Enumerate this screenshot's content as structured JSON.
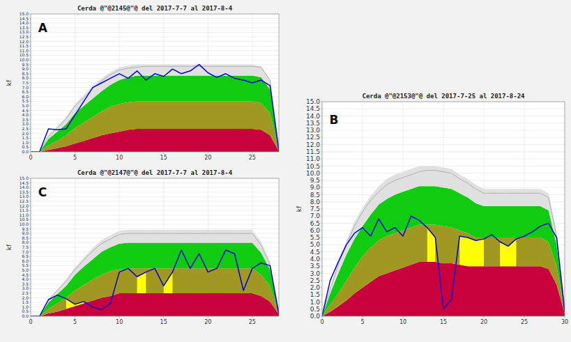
{
  "chart_data": [
    {
      "type": "area",
      "title": "Cerda @\"@2145@\"@ del 2017-7-7 al 2017-8-4",
      "annotations": [
        "A"
      ],
      "y_label": "kf",
      "x": [
        0,
        1,
        2,
        3,
        4,
        5,
        6,
        7,
        8,
        9,
        10,
        11,
        12,
        13,
        14,
        15,
        16,
        17,
        18,
        19,
        20,
        21,
        22,
        23,
        24,
        25,
        26,
        27,
        28
      ],
      "xlim": [
        0,
        28
      ],
      "xticks": [
        0,
        5,
        10,
        15,
        20,
        25
      ],
      "ylim": [
        0,
        15.0
      ],
      "yticks": [
        {
          "value": 0,
          "label": "0.0"
        },
        0.5,
        {
          "value": 1,
          "label": "1.0"
        },
        1.5,
        {
          "value": 2,
          "label": "2.0"
        },
        2.5,
        {
          "value": 3,
          "label": "3.0"
        },
        3.5,
        {
          "value": 4,
          "label": "4.0"
        },
        4.5,
        {
          "value": 5,
          "label": "5.0"
        },
        5.5,
        {
          "value": 6,
          "label": "6.0"
        },
        6.5,
        {
          "value": 7,
          "label": "7.0"
        },
        7.5,
        {
          "value": 8,
          "label": "8.0"
        },
        8.5,
        {
          "value": 9,
          "label": "9.0"
        },
        9.5,
        {
          "value": 10,
          "label": "10.0"
        },
        10.5,
        {
          "value": 11,
          "label": "11.0"
        },
        11.5,
        {
          "value": 12,
          "label": "12.0"
        },
        12.5,
        {
          "value": 13,
          "label": "13.0"
        },
        13.5,
        {
          "value": 14,
          "label": "14.0"
        },
        14.5,
        {
          "value": 15,
          "label": "15.0"
        }
      ],
      "grid": true,
      "series": [
        {
          "type": "area",
          "color": "#c8003c",
          "values": [
            0.0,
            0.0,
            0.2,
            0.4,
            0.6,
            0.9,
            1.2,
            1.5,
            1.8,
            2.0,
            2.2,
            2.4,
            2.5,
            2.5,
            2.5,
            2.5,
            2.5,
            2.5,
            2.5,
            2.5,
            2.5,
            2.5,
            2.5,
            2.5,
            2.5,
            2.5,
            2.4,
            1.8,
            0.1
          ]
        },
        {
          "type": "area",
          "color": "#a09820",
          "values": [
            0.0,
            0.0,
            0.7,
            1.2,
            1.8,
            2.6,
            3.2,
            3.8,
            4.4,
            4.9,
            5.2,
            5.4,
            5.5,
            5.5,
            5.5,
            5.5,
            5.5,
            5.5,
            5.5,
            5.5,
            5.5,
            5.5,
            5.5,
            5.5,
            5.5,
            5.5,
            5.3,
            4.2,
            0.2
          ]
        },
        {
          "type": "area",
          "color": "#10cc10",
          "values": [
            0.0,
            0.0,
            1.4,
            2.2,
            3.0,
            4.2,
            5.0,
            5.8,
            6.6,
            7.3,
            7.8,
            8.1,
            8.3,
            8.3,
            8.3,
            8.3,
            8.3,
            8.3,
            8.3,
            8.3,
            8.3,
            8.3,
            8.3,
            8.3,
            8.3,
            8.3,
            8.1,
            6.8,
            0.3
          ]
        },
        {
          "type": "area",
          "color": "#e0e0e0",
          "values": [
            0.0,
            0.0,
            1.8,
            2.8,
            3.8,
            5.2,
            6.2,
            7.2,
            8.0,
            8.7,
            9.2,
            9.4,
            9.5,
            9.5,
            9.5,
            9.5,
            9.5,
            9.5,
            9.5,
            9.5,
            9.5,
            9.5,
            9.5,
            9.5,
            9.5,
            9.5,
            9.3,
            7.8,
            0.4
          ]
        },
        {
          "type": "highlight",
          "color": "#ffff00",
          "values": [
            0.0,
            0.0,
            2.5,
            2.4,
            2.5,
            4.0,
            5.5,
            7.0,
            7.5,
            8.0,
            8.5,
            8.0,
            8.8,
            7.8,
            8.5,
            8.2,
            9.0,
            8.5,
            8.8,
            9.5,
            8.6,
            8.1,
            8.5,
            8.0,
            7.8,
            7.5,
            7.8,
            7.2,
            0.1
          ]
        },
        {
          "type": "line",
          "color": "#b0b0b0",
          "values": [
            0.0,
            0.0,
            1.7,
            2.6,
            3.6,
            5.0,
            5.9,
            6.9,
            7.7,
            8.4,
            8.9,
            9.1,
            9.2,
            9.3,
            9.3,
            9.3,
            9.3,
            9.3,
            9.3,
            9.3,
            9.3,
            9.3,
            9.3,
            9.3,
            9.3,
            9.3,
            9.2,
            7.8,
            0.3
          ]
        },
        {
          "type": "line",
          "color": "#0000dd",
          "values": [
            0.0,
            0.0,
            2.5,
            2.4,
            2.5,
            4.0,
            5.5,
            7.0,
            7.5,
            8.0,
            8.5,
            8.0,
            8.8,
            7.8,
            8.5,
            8.2,
            9.0,
            8.5,
            8.8,
            9.5,
            8.6,
            8.1,
            8.5,
            8.0,
            7.8,
            7.5,
            7.8,
            7.2,
            0.1
          ]
        }
      ]
    },
    {
      "type": "area",
      "title": "Cerda @\"@2153@\"@ del 2017-7-25 al 2017-8-24",
      "annotations": [
        "B"
      ],
      "y_label": "kf",
      "x": [
        0,
        1,
        2,
        3,
        4,
        5,
        6,
        7,
        8,
        9,
        10,
        11,
        12,
        13,
        14,
        15,
        16,
        17,
        18,
        19,
        20,
        21,
        22,
        23,
        24,
        25,
        26,
        27,
        28,
        29,
        30
      ],
      "xlim": [
        0,
        30
      ],
      "xticks": [
        0,
        5,
        10,
        15,
        20,
        25,
        30
      ],
      "ylim": [
        0,
        15.0
      ],
      "yticks": [
        {
          "value": 0,
          "label": "0.0"
        },
        0.5,
        {
          "value": 1,
          "label": "1.0"
        },
        1.5,
        {
          "value": 2,
          "label": "2.0"
        },
        2.5,
        {
          "value": 3,
          "label": "3.0"
        },
        3.5,
        {
          "value": 4,
          "label": "4.0"
        },
        4.5,
        {
          "value": 5,
          "label": "5.0"
        },
        5.5,
        {
          "value": 6,
          "label": "6.0"
        },
        6.5,
        {
          "value": 7,
          "label": "7.0"
        },
        7.5,
        {
          "value": 8,
          "label": "8.0"
        },
        8.5,
        {
          "value": 9,
          "label": "9.0"
        },
        9.5,
        {
          "value": 10,
          "label": "10.0"
        },
        10.5,
        {
          "value": 11,
          "label": "11.0"
        },
        11.5,
        {
          "value": 12,
          "label": "12.0"
        },
        12.5,
        {
          "value": 13,
          "label": "13.0"
        },
        13.5,
        {
          "value": 14,
          "label": "14.0"
        },
        14.5,
        {
          "value": 15,
          "label": "15.0"
        }
      ],
      "grid": true,
      "series": [
        {
          "type": "area",
          "color": "#c8003c",
          "values": [
            0.0,
            0.3,
            0.7,
            1.1,
            1.6,
            2.0,
            2.4,
            2.8,
            3.0,
            3.2,
            3.4,
            3.6,
            3.8,
            3.8,
            3.8,
            3.7,
            3.7,
            3.6,
            3.5,
            3.5,
            3.5,
            3.5,
            3.5,
            3.5,
            3.5,
            3.5,
            3.5,
            3.5,
            3.3,
            2.2,
            0.2
          ]
        },
        {
          "type": "area",
          "color": "#a09820",
          "values": [
            0.0,
            0.8,
            1.6,
            2.5,
            3.4,
            4.2,
            4.8,
            5.3,
            5.6,
            5.8,
            6.0,
            6.2,
            6.4,
            6.4,
            6.4,
            6.3,
            6.2,
            6.0,
            5.8,
            5.5,
            5.5,
            5.5,
            5.5,
            5.5,
            5.5,
            5.5,
            5.5,
            5.5,
            5.2,
            3.5,
            0.4
          ]
        },
        {
          "type": "area",
          "color": "#10cc10",
          "values": [
            0.0,
            1.6,
            3.0,
            4.3,
            5.4,
            6.3,
            7.1,
            7.8,
            8.2,
            8.5,
            8.7,
            8.9,
            9.1,
            9.1,
            9.1,
            9.0,
            8.9,
            8.6,
            8.3,
            7.9,
            7.7,
            7.7,
            7.7,
            7.7,
            7.7,
            7.7,
            7.7,
            7.7,
            7.4,
            5.0,
            0.5
          ]
        },
        {
          "type": "area",
          "color": "#e0e0e0",
          "values": [
            0.0,
            2.0,
            3.8,
            5.3,
            6.6,
            7.6,
            8.4,
            9.1,
            9.6,
            9.9,
            10.1,
            10.3,
            10.5,
            10.5,
            10.5,
            10.4,
            10.3,
            9.9,
            9.6,
            9.2,
            8.9,
            8.9,
            8.9,
            8.9,
            8.9,
            8.9,
            8.9,
            8.9,
            8.6,
            5.9,
            0.7
          ]
        },
        {
          "type": "highlight",
          "color": "#ffff00",
          "values": [
            0.0,
            2.5,
            3.8,
            5.0,
            5.8,
            6.2,
            5.6,
            6.8,
            5.9,
            6.2,
            5.6,
            7.0,
            6.7,
            6.2,
            5.5,
            0.5,
            1.2,
            5.6,
            5.5,
            5.3,
            5.4,
            5.7,
            5.2,
            4.9,
            5.4,
            5.6,
            5.9,
            6.3,
            6.5,
            5.5,
            0.3
          ]
        },
        {
          "type": "line",
          "color": "#b0b0b0",
          "values": [
            0.0,
            1.9,
            3.6,
            5.0,
            6.3,
            7.3,
            8.1,
            8.7,
            9.2,
            9.5,
            9.7,
            9.9,
            10.1,
            10.2,
            10.2,
            10.1,
            10.0,
            9.6,
            9.3,
            8.9,
            8.6,
            8.6,
            8.6,
            8.6,
            8.6,
            8.6,
            8.6,
            8.6,
            8.3,
            5.6,
            0.6
          ]
        },
        {
          "type": "line",
          "color": "#0000dd",
          "values": [
            0.0,
            2.5,
            3.8,
            5.0,
            5.8,
            6.2,
            5.6,
            6.8,
            5.9,
            6.2,
            5.6,
            7.0,
            6.7,
            6.2,
            5.5,
            0.5,
            1.2,
            5.6,
            5.5,
            5.3,
            5.4,
            5.7,
            5.2,
            4.9,
            5.4,
            5.6,
            5.9,
            6.3,
            6.5,
            5.5,
            0.3
          ]
        }
      ]
    },
    {
      "type": "area",
      "title": "Cerda @\"@2147@\"@ del 2017-7-7 al 2017-8-4",
      "annotations": [
        "C"
      ],
      "y_label": "kf",
      "x": [
        0,
        1,
        2,
        3,
        4,
        5,
        6,
        7,
        8,
        9,
        10,
        11,
        12,
        13,
        14,
        15,
        16,
        17,
        18,
        19,
        20,
        21,
        22,
        23,
        24,
        25,
        26,
        27,
        28
      ],
      "xlim": [
        0,
        28
      ],
      "xticks": [
        0,
        5,
        10,
        15,
        20,
        25
      ],
      "ylim": [
        0,
        15.0
      ],
      "yticks": [
        {
          "value": 0,
          "label": "0.0"
        },
        0.5,
        {
          "value": 1,
          "label": "1.0"
        },
        1.5,
        {
          "value": 2,
          "label": "2.0"
        },
        2.5,
        {
          "value": 3,
          "label": "3.0"
        },
        3.5,
        {
          "value": 4,
          "label": "4.0"
        },
        4.5,
        {
          "value": 5,
          "label": "5.0"
        },
        5.5,
        {
          "value": 6,
          "label": "6.0"
        },
        6.5,
        {
          "value": 7,
          "label": "7.0"
        },
        7.5,
        {
          "value": 8,
          "label": "8.0"
        },
        8.5,
        {
          "value": 9,
          "label": "9.0"
        },
        9.5,
        {
          "value": 10,
          "label": "10.0"
        },
        10.5,
        {
          "value": 11,
          "label": "11.0"
        },
        11.5,
        {
          "value": 12,
          "label": "12.0"
        },
        12.5,
        {
          "value": 13,
          "label": "13.0"
        },
        13.5,
        {
          "value": 14,
          "label": "14.0"
        },
        14.5,
        {
          "value": 15,
          "label": "15.0"
        }
      ],
      "grid": true,
      "series": [
        {
          "type": "area",
          "color": "#c8003c",
          "values": [
            0.0,
            0.0,
            0.3,
            0.5,
            0.8,
            1.1,
            1.4,
            1.7,
            2.0,
            2.2,
            2.5,
            2.5,
            2.5,
            2.5,
            2.5,
            2.5,
            2.5,
            2.5,
            2.5,
            2.5,
            2.5,
            2.5,
            2.5,
            2.5,
            2.5,
            2.5,
            2.2,
            1.6,
            0.2
          ]
        },
        {
          "type": "area",
          "color": "#a09820",
          "values": [
            0.0,
            0.0,
            0.8,
            1.4,
            2.0,
            2.8,
            3.4,
            4.0,
            4.5,
            4.9,
            5.1,
            5.2,
            5.2,
            5.2,
            5.2,
            5.2,
            5.2,
            5.2,
            5.2,
            5.2,
            5.2,
            5.2,
            5.2,
            5.2,
            5.2,
            5.2,
            4.5,
            3.3,
            0.4
          ]
        },
        {
          "type": "area",
          "color": "#10cc10",
          "values": [
            0.0,
            0.0,
            1.5,
            2.4,
            3.3,
            4.5,
            5.4,
            6.2,
            7.0,
            7.5,
            7.9,
            8.0,
            8.0,
            8.0,
            8.0,
            8.0,
            8.0,
            8.0,
            8.0,
            8.0,
            8.0,
            8.0,
            8.0,
            8.0,
            8.0,
            8.0,
            6.9,
            5.1,
            0.5
          ]
        },
        {
          "type": "area",
          "color": "#e0e0e0",
          "values": [
            0.0,
            0.0,
            1.9,
            2.9,
            4.0,
            5.3,
            6.4,
            7.4,
            8.3,
            8.8,
            9.3,
            9.4,
            9.4,
            9.4,
            9.4,
            9.4,
            9.4,
            9.4,
            9.4,
            9.4,
            9.4,
            9.4,
            9.4,
            9.4,
            9.4,
            9.4,
            8.1,
            6.0,
            0.6
          ]
        },
        {
          "type": "highlight",
          "color": "#ffff00",
          "values": [
            0.0,
            0.0,
            1.8,
            2.3,
            1.9,
            1.3,
            1.6,
            1.0,
            0.7,
            1.4,
            4.8,
            5.2,
            4.3,
            4.8,
            5.2,
            3.3,
            4.8,
            7.2,
            5.2,
            6.8,
            4.8,
            5.2,
            7.2,
            6.8,
            2.8,
            5.2,
            5.8,
            5.5,
            0.2
          ]
        },
        {
          "type": "line",
          "color": "#b0b0b0",
          "values": [
            0.0,
            0.0,
            1.8,
            2.8,
            3.8,
            5.1,
            6.1,
            7.1,
            7.9,
            8.4,
            8.9,
            9.0,
            9.0,
            9.0,
            9.0,
            9.0,
            9.0,
            9.0,
            9.0,
            9.0,
            9.0,
            9.0,
            9.0,
            9.0,
            9.0,
            9.0,
            7.7,
            5.6,
            0.5
          ]
        },
        {
          "type": "line",
          "color": "#0000dd",
          "values": [
            0.0,
            0.0,
            1.8,
            2.3,
            1.9,
            1.3,
            1.6,
            1.0,
            0.7,
            1.4,
            4.8,
            5.2,
            4.3,
            4.8,
            5.2,
            3.3,
            4.8,
            7.2,
            5.2,
            6.8,
            4.8,
            5.2,
            7.2,
            6.8,
            2.8,
            5.2,
            5.8,
            5.5,
            0.2
          ]
        }
      ]
    }
  ]
}
